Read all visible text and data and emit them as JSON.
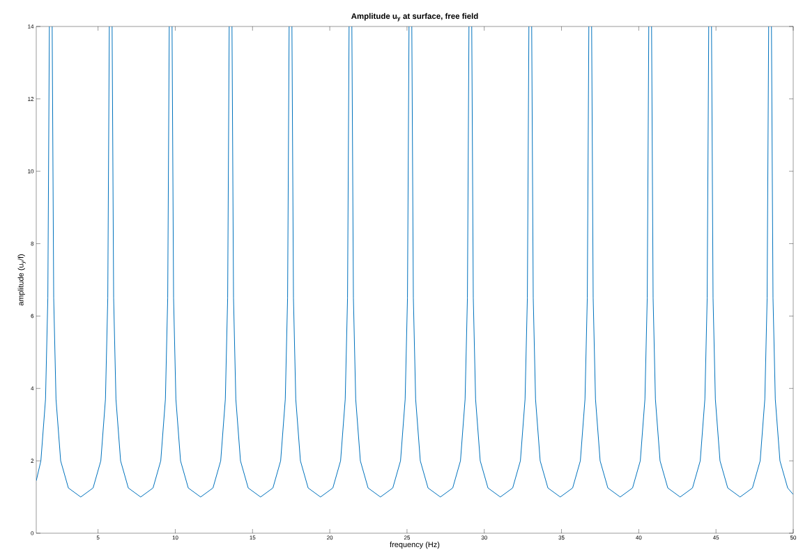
{
  "chart_data": {
    "type": "line",
    "title": "**Amplitude u$_{y}$ at surface, free field**",
    "xlabel": "frequency (Hz)",
    "ylabel": "amplitude (u$_{y}$/f)",
    "xlim": [
      1,
      50
    ],
    "ylim": [
      0,
      14
    ],
    "xticks": [
      5,
      10,
      15,
      20,
      25,
      30,
      35,
      40,
      45,
      50
    ],
    "yticks": [
      0,
      2,
      4,
      6,
      8,
      10,
      12,
      14
    ],
    "grid": false,
    "marker": "none",
    "line_style": "solid",
    "series": [
      {
        "color": "#0072bd",
        "x": [
          1,
          1.3,
          1.6,
          1.75,
          1.85,
          1.94,
          2.03,
          2.13,
          2.28,
          2.58,
          3.08,
          3.88,
          4.68,
          5.18,
          5.48,
          5.63,
          5.73,
          5.82,
          5.91,
          6.01,
          6.16,
          6.46,
          6.96,
          7.76,
          8.56,
          9.06,
          9.36,
          9.51,
          9.61,
          9.7,
          9.79,
          9.89,
          10.04,
          10.34,
          10.84,
          11.64,
          12.44,
          12.94,
          13.24,
          13.39,
          13.49,
          13.58,
          13.67,
          13.77,
          13.92,
          14.22,
          14.72,
          15.52,
          16.32,
          16.82,
          17.12,
          17.27,
          17.37,
          17.46,
          17.55,
          17.65,
          17.8,
          18.1,
          18.6,
          19.4,
          20.2,
          20.7,
          21.0,
          21.15,
          21.25,
          21.34,
          21.43,
          21.53,
          21.68,
          21.98,
          22.48,
          23.28,
          24.08,
          24.58,
          24.88,
          25.03,
          25.13,
          25.22,
          25.31,
          25.41,
          25.56,
          25.86,
          26.36,
          27.16,
          27.96,
          28.46,
          28.76,
          28.91,
          29.01,
          29.1,
          29.19,
          29.29,
          29.44,
          29.74,
          30.24,
          31.04,
          31.84,
          32.34,
          32.64,
          32.79,
          32.89,
          32.98,
          33.07,
          33.17,
          33.32,
          33.62,
          34.12,
          34.92,
          35.72,
          36.22,
          36.52,
          36.67,
          36.77,
          36.86,
          36.95,
          37.05,
          37.2,
          37.5,
          38.0,
          38.8,
          39.6,
          40.1,
          40.4,
          40.55,
          40.65,
          40.74,
          40.83,
          40.93,
          41.08,
          41.38,
          41.88,
          42.68,
          43.48,
          43.98,
          44.28,
          44.43,
          44.53,
          44.62,
          44.71,
          44.81,
          44.96,
          45.26,
          45.76,
          46.56,
          47.36,
          47.86,
          48.16,
          48.31,
          48.41,
          48.5,
          48.59,
          48.69,
          48.84,
          49.14,
          49.64,
          50
        ],
        "values": [
          1.45,
          2.0,
          3.7,
          6.5,
          14,
          null,
          14,
          6.5,
          3.7,
          2.0,
          1.25,
          1,
          1.25,
          2.0,
          3.7,
          6.5,
          14,
          null,
          14,
          6.5,
          3.7,
          2.0,
          1.25,
          1,
          1.25,
          2.0,
          3.7,
          6.5,
          14,
          null,
          14,
          6.5,
          3.7,
          2.0,
          1.25,
          1,
          1.25,
          2.0,
          3.7,
          6.5,
          14,
          null,
          14,
          6.5,
          3.7,
          2.0,
          1.25,
          1,
          1.25,
          2.0,
          3.7,
          6.5,
          14,
          null,
          14,
          6.5,
          3.7,
          2.0,
          1.25,
          1,
          1.25,
          2.0,
          3.7,
          6.5,
          14,
          null,
          14,
          6.5,
          3.7,
          2.0,
          1.25,
          1,
          1.25,
          2.0,
          3.7,
          6.5,
          14,
          null,
          14,
          6.5,
          3.7,
          2.0,
          1.25,
          1,
          1.25,
          2.0,
          3.7,
          6.5,
          14,
          null,
          14,
          6.5,
          3.7,
          2.0,
          1.25,
          1,
          1.25,
          2.0,
          3.7,
          6.5,
          14,
          null,
          14,
          6.5,
          3.7,
          2.0,
          1.25,
          1,
          1.25,
          2.0,
          3.7,
          6.5,
          14,
          null,
          14,
          6.5,
          3.7,
          2.0,
          1.25,
          1,
          1.25,
          2.0,
          3.7,
          6.5,
          14,
          null,
          14,
          6.5,
          3.7,
          2.0,
          1.25,
          1,
          1.25,
          2.0,
          3.7,
          6.5,
          14,
          null,
          14,
          6.5,
          3.7,
          2.0,
          1.25,
          1,
          1.25,
          2.0,
          3.7,
          6.5,
          14,
          null,
          14,
          6.5,
          3.7,
          2.0,
          1.25,
          1.07
        ]
      }
    ]
  }
}
